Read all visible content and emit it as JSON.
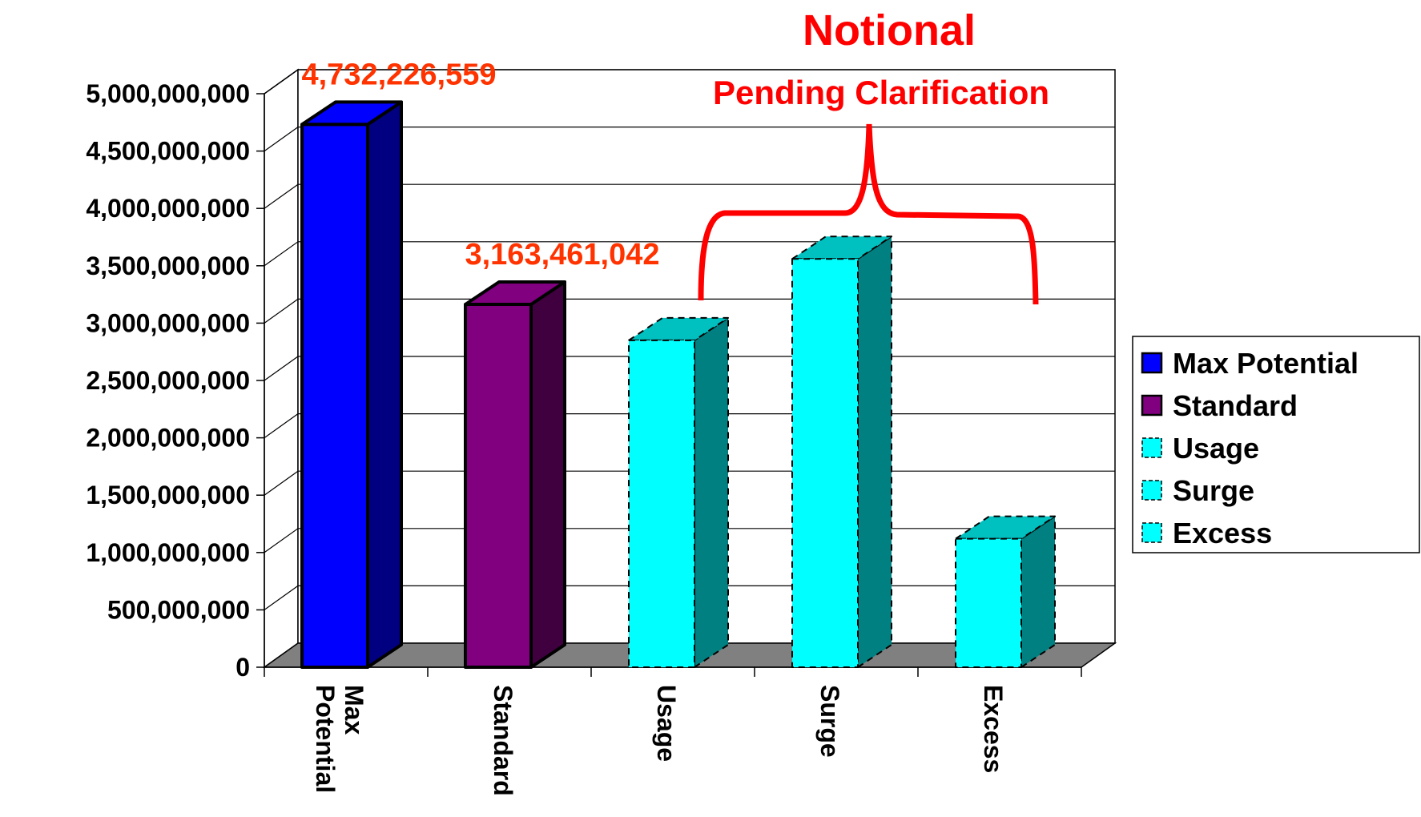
{
  "chart_data": {
    "type": "bar",
    "style": "3d-column",
    "title": "Notional",
    "annotation": "Pending Clarification",
    "annotation_color": "#ff0000",
    "categories": [
      "Max Potential",
      "Standard",
      "Usage",
      "Surge",
      "Excess"
    ],
    "values": [
      4732226559,
      3163461042,
      2850000000,
      3560000000,
      1120000000
    ],
    "data_labels": [
      "4,732,226,559",
      "3,163,461,042",
      "",
      "",
      ""
    ],
    "data_label_color": "#ff3300",
    "ylim": [
      0,
      5000000000
    ],
    "yticks": [
      "0",
      "500,000,000",
      "1,000,000,000",
      "1,500,000,000",
      "2,000,000,000",
      "2,500,000,000",
      "3,000,000,000",
      "3,500,000,000",
      "4,000,000,000",
      "4,500,000,000",
      "5,000,000,000"
    ],
    "grid": true,
    "legend_position": "right",
    "legend": [
      {
        "label": "Max Potential",
        "color": "#0000ff",
        "dashed": false
      },
      {
        "label": "Standard",
        "color": "#800080",
        "dashed": false
      },
      {
        "label": "Usage",
        "color": "#00ffff",
        "dashed": true
      },
      {
        "label": "Surge",
        "color": "#00ffff",
        "dashed": true
      },
      {
        "label": "Excess",
        "color": "#00ffff",
        "dashed": true
      }
    ],
    "bar_colors": [
      {
        "front": "#0000ff",
        "side": "#000080",
        "top": "#0000ff",
        "dashed": false
      },
      {
        "front": "#800080",
        "side": "#400040",
        "top": "#800080",
        "dashed": false
      },
      {
        "front": "#00ffff",
        "side": "#008080",
        "top": "#00c0c0",
        "dashed": true
      },
      {
        "front": "#00ffff",
        "side": "#008080",
        "top": "#00c0c0",
        "dashed": true
      },
      {
        "front": "#00ffff",
        "side": "#008080",
        "top": "#00c0c0",
        "dashed": true
      }
    ],
    "floor_color": "#808080"
  }
}
